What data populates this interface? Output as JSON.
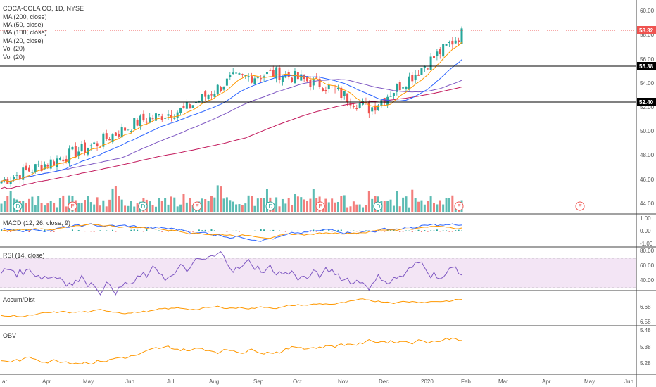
{
  "header": {
    "symbol_title": "COCA-COLA CO, 1D, NYSE",
    "indicators": [
      "MA (200, close)",
      "MA (50, close)",
      "MA (100, close)",
      "MA (20, close)",
      "Vol (20)",
      "Vol (20)"
    ]
  },
  "price_scale": {
    "ticks": [
      "60.00",
      "58.00",
      "56.00",
      "54.00",
      "52.00",
      "50.00",
      "48.00",
      "46.00",
      "44.00"
    ],
    "tags": [
      {
        "label": "58.32",
        "color": "#ef5350"
      },
      {
        "label": "55.38",
        "color": "#000000"
      },
      {
        "label": "52.40",
        "color": "#000000"
      }
    ]
  },
  "events": {
    "dividend_label": "D",
    "earnings_label": "E"
  },
  "panes": {
    "macd": {
      "title": "MACD (12, 26, close, 9)",
      "ticks": [
        "1.00",
        "0.00",
        "-1.00"
      ]
    },
    "rsi": {
      "title": "RSI (14, close)",
      "ticks": [
        "80.00",
        "60.00",
        "40.00"
      ]
    },
    "accum": {
      "title": "Accum/Dist",
      "ticks": [
        "6.68",
        "6.58"
      ]
    },
    "obv": {
      "title": "OBV",
      "ticks": [
        "5.48",
        "5.38",
        "5.28"
      ]
    }
  },
  "time_axis": {
    "labels": [
      "ar",
      "Apr",
      "May",
      "Jun",
      "Jul",
      "Aug",
      "Sep",
      "Oct",
      "Nov",
      "Dec",
      "2020",
      "Feb",
      "Mar",
      "Apr",
      "May",
      "Jun"
    ]
  },
  "colors": {
    "up": "#26a69a",
    "down": "#ef5350",
    "ma200": "#c2185b",
    "ma50": "#2962ff",
    "ma100": "#7e57c2",
    "ma20": "#ff9800",
    "rsi_bg": "#f3e5f5"
  },
  "chart_data": {
    "type": "candlestick",
    "series_summary": [
      {
        "date": "2019-03",
        "close": 46.0
      },
      {
        "date": "2019-04",
        "close": 47.5
      },
      {
        "date": "2019-05",
        "close": 49.0
      },
      {
        "date": "2019-06",
        "close": 51.0
      },
      {
        "date": "2019-07",
        "close": 52.0
      },
      {
        "date": "2019-08",
        "close": 54.5
      },
      {
        "date": "2019-09",
        "close": 55.0
      },
      {
        "date": "2019-10",
        "close": 54.0
      },
      {
        "date": "2019-11",
        "close": 52.0
      },
      {
        "date": "2019-12",
        "close": 55.0
      },
      {
        "date": "2020-01",
        "close": 58.3
      }
    ],
    "last_price": 58.32,
    "horizontal_lines": [
      55.38,
      52.4
    ],
    "ylim": [
      43.5,
      60.5
    ]
  }
}
